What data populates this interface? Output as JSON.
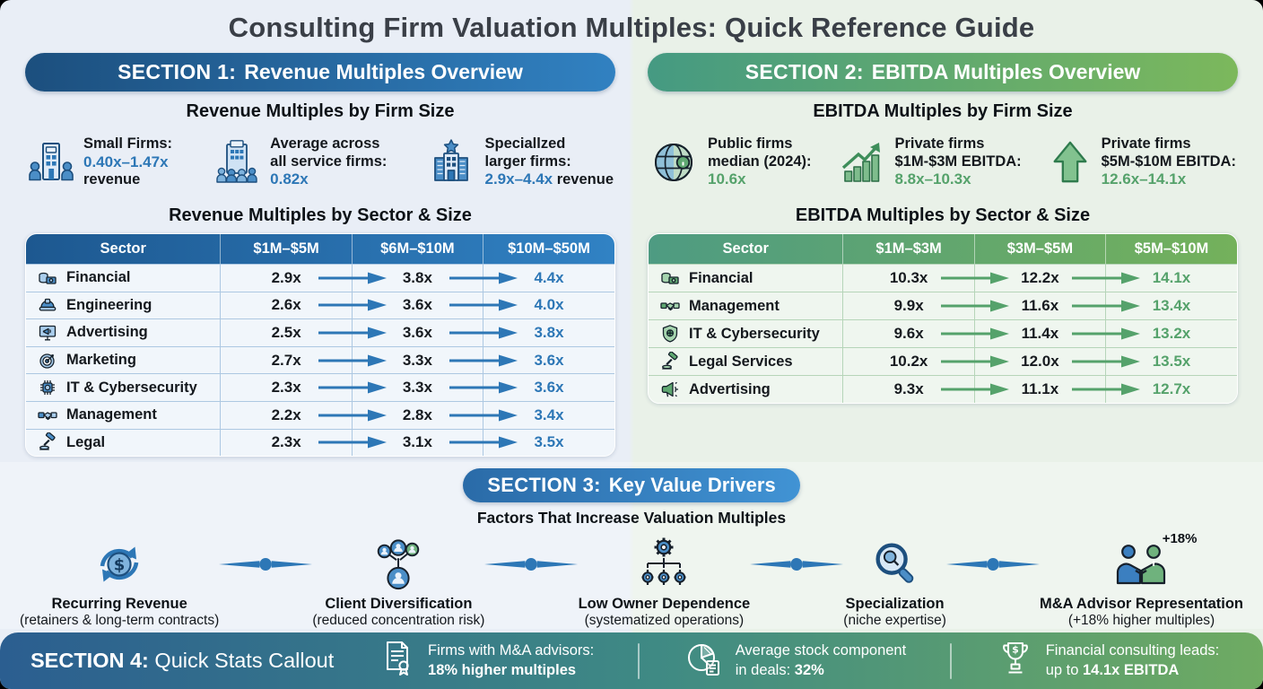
{
  "title": "Consulting Firm Valuation Multiples: Quick Reference Guide",
  "colors": {
    "bg_left": "#e9eef6",
    "bg_right": "#e9f1e8",
    "title_color": "#3a3f47",
    "blue_accent": "#2d77b6",
    "green_accent": "#55a26b",
    "s1_grad": [
      "#1c4f7e",
      "#3181c1"
    ],
    "s2_grad": [
      "#459a82",
      "#7cb85c"
    ],
    "s3_grad": [
      "#2a6ba8",
      "#4193d4"
    ],
    "t1_head": [
      "#1d5890",
      "#3182c4"
    ],
    "t2_head": [
      "#4e9b82",
      "#74b15b"
    ],
    "footer_grad": [
      "#2b5e90",
      "#3f8a84",
      "#6fab62"
    ]
  },
  "section1": {
    "header_prefix": "SECTION 1:",
    "header_title": "Revenue Multiples Overview",
    "firm_size_title": "Revenue Multiples by Firm Size",
    "firm_size_items": [
      {
        "icon": "building-people-icon",
        "lines": [
          [
            {
              "t": "Small Firms:"
            }
          ],
          [
            {
              "t": "0.40x–1.47x",
              "v": true
            }
          ],
          [
            {
              "t": "revenue"
            }
          ]
        ]
      },
      {
        "icon": "building-crowd-icon",
        "lines": [
          [
            {
              "t": "Average across"
            }
          ],
          [
            {
              "t": "all service firms:"
            }
          ],
          [
            {
              "t": "0.82x",
              "v": true
            }
          ]
        ]
      },
      {
        "icon": "building-star-icon",
        "lines": [
          [
            {
              "t": "Speciallzed"
            }
          ],
          [
            {
              "t": "larger firms:"
            }
          ],
          [
            {
              "t": "2.9x–4.4x",
              "v": true
            },
            {
              "t": " revenue"
            }
          ]
        ]
      }
    ],
    "table_title": "Revenue Multiples by Sector & Size",
    "table": {
      "columns": [
        "Sector",
        "$1M–$5M",
        "$6M–$10M",
        "$10M–$50M"
      ],
      "rows": [
        {
          "icon": "money-icon",
          "sector": "Financial",
          "values": [
            "2.9x",
            "3.8x",
            "4.4x"
          ]
        },
        {
          "icon": "hardhat-icon",
          "sector": "Engineering",
          "values": [
            "2.6x",
            "3.6x",
            "4.0x"
          ]
        },
        {
          "icon": "ad-monitor-icon",
          "sector": "Advertising",
          "values": [
            "2.5x",
            "3.6x",
            "3.8x"
          ]
        },
        {
          "icon": "target-icon",
          "sector": "Marketing",
          "values": [
            "2.7x",
            "3.3x",
            "3.6x"
          ]
        },
        {
          "icon": "chip-icon",
          "sector": "IT & Cybersecurity",
          "values": [
            "2.3x",
            "3.3x",
            "3.6x"
          ]
        },
        {
          "icon": "handshake-icon",
          "sector": "Management",
          "values": [
            "2.2x",
            "2.8x",
            "3.4x"
          ]
        },
        {
          "icon": "gavel-icon",
          "sector": "Legal",
          "values": [
            "2.3x",
            "3.1x",
            "3.5x"
          ]
        }
      ]
    }
  },
  "section2": {
    "header_prefix": "SECTION 2:",
    "header_title": "EBITDA Multiples Overview",
    "firm_size_title": "EBITDA Multiples by Firm Size",
    "firm_size_items": [
      {
        "icon": "globe-icon",
        "lines": [
          [
            {
              "t": "Public firms"
            }
          ],
          [
            {
              "t": "median (2024):"
            }
          ],
          [
            {
              "t": "10.6x",
              "v": true
            }
          ]
        ]
      },
      {
        "icon": "chart-up-icon",
        "lines": [
          [
            {
              "t": "Private firms"
            }
          ],
          [
            {
              "t": "$1M-$3M EBITDA:"
            }
          ],
          [
            {
              "t": "8.8x–10.3x",
              "v": true
            }
          ]
        ]
      },
      {
        "icon": "up-arrow-icon",
        "lines": [
          [
            {
              "t": "Private firms"
            }
          ],
          [
            {
              "t": "$5M-$10M EBITDA:"
            }
          ],
          [
            {
              "t": "12.6x–14.1x",
              "v": true
            }
          ]
        ]
      }
    ],
    "table_title": "EBITDA Multiples by Sector & Size",
    "table": {
      "columns": [
        "Sector",
        "$1M–$3M",
        "$3M–$5M",
        "$5M–$10M"
      ],
      "rows": [
        {
          "icon": "money-icon",
          "sector": "Financial",
          "values": [
            "10.3x",
            "12.2x",
            "14.1x"
          ]
        },
        {
          "icon": "handshake-icon",
          "sector": "Management",
          "values": [
            "9.9x",
            "11.6x",
            "13.4x"
          ]
        },
        {
          "icon": "shield-icon",
          "sector": "IT & Cybersecurity",
          "values": [
            "9.6x",
            "11.4x",
            "13.2x"
          ]
        },
        {
          "icon": "gavel-icon",
          "sector": "Legal Services",
          "values": [
            "10.2x",
            "12.0x",
            "13.5x"
          ]
        },
        {
          "icon": "megaphone-icon",
          "sector": "Advertising",
          "values": [
            "9.3x",
            "11.1x",
            "12.7x"
          ]
        }
      ]
    }
  },
  "section3": {
    "header_prefix": "SECTION 3:",
    "header_title": "Key Value Drivers",
    "subtitle": "Factors That Increase Valuation Multiples",
    "drivers": [
      {
        "icon": "recurring-revenue-icon",
        "badge": "",
        "title": "Recurring Revenue",
        "subtitle": "(retainers & long-term contracts)"
      },
      {
        "icon": "client-network-icon",
        "badge": "",
        "title": "Client Diversification",
        "subtitle": "(reduced concentration risk)"
      },
      {
        "icon": "gears-org-icon",
        "badge": "",
        "title": "Low Owner Dependence",
        "subtitle": "(systematized operations)"
      },
      {
        "icon": "magnifier-icon",
        "badge": "",
        "title": "Specialization",
        "subtitle": "(niche expertise)"
      },
      {
        "icon": "ma-handshake-icon",
        "badge": "+18%",
        "title": "M&A Advisor Representation",
        "subtitle": "(+18% higher multiples)"
      }
    ]
  },
  "section4": {
    "header_prefix": "SECTION 4:",
    "header_title": "Quick Stats Callout",
    "stats": [
      {
        "icon": "certificate-icon",
        "line1": [
          {
            "t": "Firms with M&A advisors:"
          }
        ],
        "line2": [
          {
            "t": "18% higher multiples",
            "b": true
          }
        ]
      },
      {
        "icon": "pie-chart-icon",
        "line1": [
          {
            "t": "Average stock component"
          }
        ],
        "line2": [
          {
            "t": "in deals: "
          },
          {
            "t": "32%",
            "b": true
          }
        ]
      },
      {
        "icon": "trophy-icon",
        "line1": [
          {
            "t": "Financial consulting leads:"
          }
        ],
        "line2": [
          {
            "t": "up to "
          },
          {
            "t": "14.1x EBITDA",
            "b": true
          }
        ]
      }
    ]
  }
}
